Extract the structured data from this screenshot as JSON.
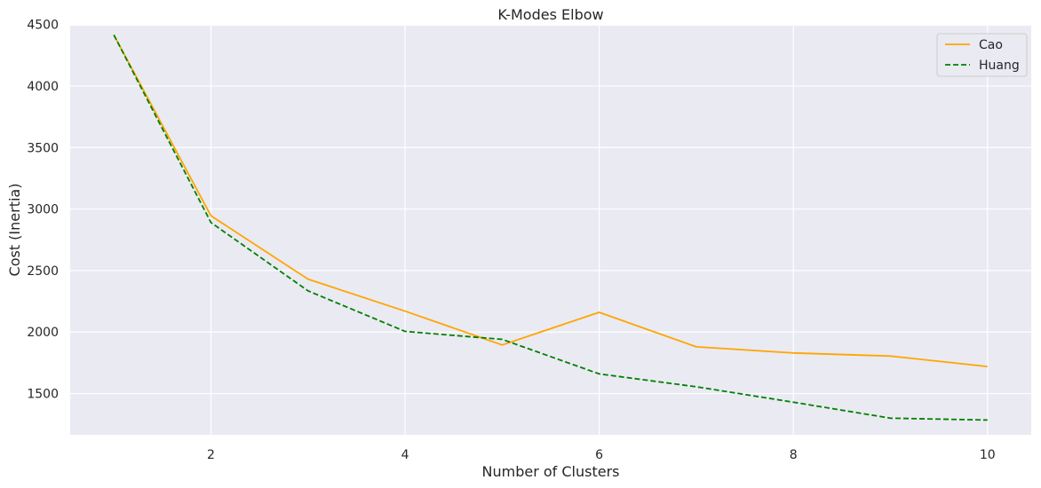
{
  "chart_data": {
    "type": "line",
    "title": "K-Modes Elbow",
    "xlabel": "Number of Clusters",
    "ylabel": "Cost (Inertia)",
    "x": [
      1,
      2,
      3,
      4,
      5,
      6,
      7,
      8,
      9,
      10
    ],
    "xlim": [
      0.55,
      10.45
    ],
    "ylim": [
      1165,
      4490
    ],
    "xticks": [
      2,
      4,
      6,
      8,
      10
    ],
    "yticks": [
      1500,
      2000,
      2500,
      3000,
      3500,
      4000,
      4500
    ],
    "grid": true,
    "background": "#eaeaf2",
    "legend_position": "top-right",
    "series": [
      {
        "name": "Cao",
        "color": "#ffa500",
        "dash": "solid",
        "values": [
          4415,
          2945,
          2430,
          2170,
          1895,
          2160,
          1880,
          1830,
          1805,
          1720
        ]
      },
      {
        "name": "Huang",
        "color": "#008000",
        "dash": "dashed",
        "values": [
          4415,
          2890,
          2335,
          2005,
          1940,
          1660,
          1555,
          1430,
          1300,
          1285
        ]
      }
    ]
  }
}
